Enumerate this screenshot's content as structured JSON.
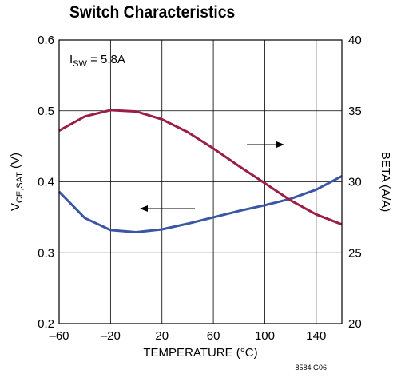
{
  "chart_data": {
    "type": "line",
    "title": "Switch Characteristics",
    "xlabel": "TEMPERATURE (°C)",
    "ylabel_left": "V",
    "ylabel_left_subscript": "CE,SAT",
    "ylabel_left_unit": " (V)",
    "ylabel_right": "BETA (A/A)",
    "xlim": [
      -60,
      160
    ],
    "ylim_left": [
      0.2,
      0.6
    ],
    "ylim_right": [
      20,
      40
    ],
    "x_ticks": [
      -60,
      -20,
      20,
      60,
      100,
      140
    ],
    "x_tick_labels": [
      "–60",
      "–20",
      "20",
      "60",
      "100",
      "140"
    ],
    "y_left_ticks": [
      0.2,
      0.3,
      0.4,
      0.5,
      0.6
    ],
    "y_left_tick_labels": [
      "0.2",
      "0.3",
      "0.4",
      "0.5",
      "0.6"
    ],
    "y_right_ticks": [
      20,
      25,
      30,
      35,
      40
    ],
    "y_right_tick_labels": [
      "20",
      "25",
      "30",
      "35",
      "40"
    ],
    "grid": true,
    "annotation": {
      "prefix": "I",
      "subscript": "SW",
      "suffix": " = 5.8A"
    },
    "series": [
      {
        "axis": "left",
        "color": "#3a56a5",
        "x": [
          -60,
          -40,
          -20,
          0,
          20,
          40,
          60,
          80,
          100,
          120,
          140,
          160
        ],
        "y": [
          0.386,
          0.349,
          0.332,
          0.329,
          0.333,
          0.341,
          0.35,
          0.359,
          0.367,
          0.376,
          0.389,
          0.408
        ]
      },
      {
        "axis": "right",
        "color": "#9b1e45",
        "x": [
          -60,
          -40,
          -20,
          0,
          20,
          40,
          60,
          80,
          100,
          120,
          140,
          160
        ],
        "y": [
          33.6,
          34.6,
          35.05,
          34.95,
          34.4,
          33.5,
          32.35,
          31.1,
          29.9,
          28.7,
          27.7,
          27.0
        ]
      }
    ],
    "arrows": [
      {
        "direction": "left",
        "points_to": "left axis"
      },
      {
        "direction": "right",
        "points_to": "right axis"
      }
    ]
  },
  "figure_id": "8584 G06"
}
